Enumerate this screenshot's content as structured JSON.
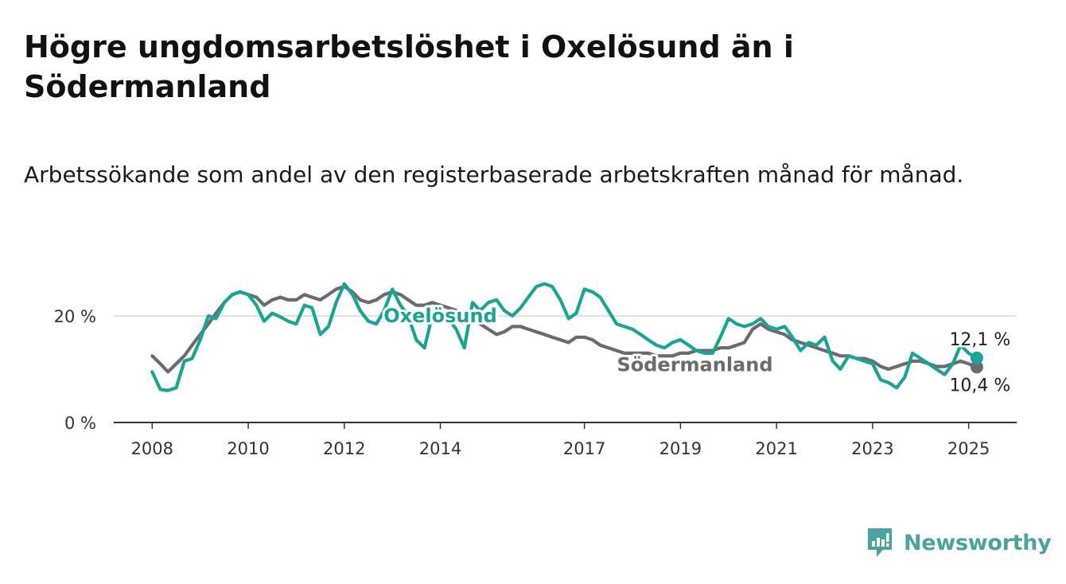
{
  "title": "Högre ungdomsarbetslöshet i Oxelösund än i Södermanland",
  "subtitle": "Arbetssökande som andel av den registerbaserade arbetskraften månad för månad.",
  "brand": {
    "name": "Newsworthy",
    "icon": "newsworthy-logo-icon",
    "color": "#4aa39e"
  },
  "chart_data": {
    "type": "line",
    "ylim": [
      0,
      30
    ],
    "y_ticks": [
      {
        "value": 0,
        "label": "0 %"
      },
      {
        "value": 20,
        "label": "20 %"
      }
    ],
    "x_ticks": [
      {
        "value": 2008,
        "label": "2008"
      },
      {
        "value": 2010,
        "label": "2010"
      },
      {
        "value": 2012,
        "label": "2012"
      },
      {
        "value": 2014,
        "label": "2014"
      },
      {
        "value": 2017,
        "label": "2017"
      },
      {
        "value": 2019,
        "label": "2019"
      },
      {
        "value": 2021,
        "label": "2021"
      },
      {
        "value": 2023,
        "label": "2023"
      },
      {
        "value": 2025,
        "label": "2025"
      }
    ],
    "xlim": [
      2007.2,
      2026.0
    ],
    "grid": "horizontal",
    "series": [
      {
        "name": "Oxelösund",
        "color": "#1aa396",
        "end_label": "12,1 %",
        "points": [
          [
            2008.0,
            9.5
          ],
          [
            2008.17,
            6.2
          ],
          [
            2008.33,
            6.0
          ],
          [
            2008.5,
            6.5
          ],
          [
            2008.67,
            11.5
          ],
          [
            2008.83,
            12.0
          ],
          [
            2009.0,
            15.5
          ],
          [
            2009.17,
            20.0
          ],
          [
            2009.33,
            19.5
          ],
          [
            2009.5,
            22.5
          ],
          [
            2009.67,
            24.0
          ],
          [
            2009.83,
            24.5
          ],
          [
            2010.0,
            24.0
          ],
          [
            2010.17,
            22.0
          ],
          [
            2010.33,
            19.0
          ],
          [
            2010.5,
            20.5
          ],
          [
            2010.67,
            19.8
          ],
          [
            2010.83,
            19.0
          ],
          [
            2011.0,
            18.5
          ],
          [
            2011.17,
            22.0
          ],
          [
            2011.33,
            21.5
          ],
          [
            2011.5,
            16.5
          ],
          [
            2011.67,
            18.0
          ],
          [
            2011.83,
            22.5
          ],
          [
            2012.0,
            26.0
          ],
          [
            2012.17,
            24.0
          ],
          [
            2012.33,
            21.0
          ],
          [
            2012.5,
            19.0
          ],
          [
            2012.67,
            18.5
          ],
          [
            2012.83,
            21.0
          ],
          [
            2013.0,
            25.0
          ],
          [
            2013.17,
            22.0
          ],
          [
            2013.33,
            20.0
          ],
          [
            2013.5,
            15.5
          ],
          [
            2013.67,
            14.0
          ],
          [
            2013.83,
            20.0
          ],
          [
            2014.0,
            21.0
          ],
          [
            2014.17,
            19.5
          ],
          [
            2014.33,
            17.5
          ],
          [
            2014.5,
            14.0
          ],
          [
            2014.67,
            22.5
          ],
          [
            2014.83,
            21.0
          ],
          [
            2015.0,
            22.5
          ],
          [
            2015.17,
            23.0
          ],
          [
            2015.33,
            21.0
          ],
          [
            2015.5,
            20.0
          ],
          [
            2015.67,
            21.5
          ],
          [
            2015.83,
            23.5
          ],
          [
            2016.0,
            25.5
          ],
          [
            2016.17,
            26.0
          ],
          [
            2016.33,
            25.5
          ],
          [
            2016.5,
            23.0
          ],
          [
            2016.67,
            19.5
          ],
          [
            2016.83,
            20.5
          ],
          [
            2017.0,
            25.0
          ],
          [
            2017.17,
            24.5
          ],
          [
            2017.33,
            23.5
          ],
          [
            2017.5,
            21.0
          ],
          [
            2017.67,
            18.5
          ],
          [
            2017.83,
            18.0
          ],
          [
            2018.0,
            17.5
          ],
          [
            2018.17,
            16.5
          ],
          [
            2018.33,
            15.5
          ],
          [
            2018.5,
            14.5
          ],
          [
            2018.67,
            14.0
          ],
          [
            2018.83,
            15.0
          ],
          [
            2019.0,
            15.5
          ],
          [
            2019.17,
            14.5
          ],
          [
            2019.33,
            13.5
          ],
          [
            2019.5,
            13.0
          ],
          [
            2019.67,
            13.0
          ],
          [
            2019.83,
            16.0
          ],
          [
            2020.0,
            19.5
          ],
          [
            2020.17,
            18.5
          ],
          [
            2020.33,
            18.0
          ],
          [
            2020.5,
            18.5
          ],
          [
            2020.67,
            19.5
          ],
          [
            2020.83,
            18.0
          ],
          [
            2021.0,
            17.5
          ],
          [
            2021.17,
            18.0
          ],
          [
            2021.33,
            16.0
          ],
          [
            2021.5,
            13.5
          ],
          [
            2021.67,
            15.0
          ],
          [
            2021.83,
            14.5
          ],
          [
            2022.0,
            16.0
          ],
          [
            2022.17,
            11.5
          ],
          [
            2022.33,
            10.0
          ],
          [
            2022.5,
            12.5
          ],
          [
            2022.67,
            12.0
          ],
          [
            2022.83,
            11.5
          ],
          [
            2023.0,
            11.0
          ],
          [
            2023.17,
            8.0
          ],
          [
            2023.33,
            7.5
          ],
          [
            2023.5,
            6.5
          ],
          [
            2023.67,
            8.5
          ],
          [
            2023.83,
            13.0
          ],
          [
            2024.0,
            12.0
          ],
          [
            2024.17,
            11.0
          ],
          [
            2024.33,
            10.0
          ],
          [
            2024.5,
            9.0
          ],
          [
            2024.67,
            11.0
          ],
          [
            2024.83,
            14.5
          ],
          [
            2025.0,
            13.0
          ],
          [
            2025.17,
            12.1
          ]
        ]
      },
      {
        "name": "Södermanland",
        "color": "#6b6a70",
        "end_label": "10,4 %",
        "points": [
          [
            2008.0,
            12.5
          ],
          [
            2008.17,
            11.0
          ],
          [
            2008.33,
            9.5
          ],
          [
            2008.5,
            11.0
          ],
          [
            2008.67,
            12.5
          ],
          [
            2008.83,
            14.5
          ],
          [
            2009.0,
            16.5
          ],
          [
            2009.17,
            18.5
          ],
          [
            2009.33,
            20.5
          ],
          [
            2009.5,
            22.5
          ],
          [
            2009.67,
            24.0
          ],
          [
            2009.83,
            24.5
          ],
          [
            2010.0,
            24.0
          ],
          [
            2010.17,
            23.5
          ],
          [
            2010.33,
            22.0
          ],
          [
            2010.5,
            23.0
          ],
          [
            2010.67,
            23.5
          ],
          [
            2010.83,
            23.0
          ],
          [
            2011.0,
            23.0
          ],
          [
            2011.17,
            24.0
          ],
          [
            2011.33,
            23.5
          ],
          [
            2011.5,
            23.0
          ],
          [
            2011.67,
            24.0
          ],
          [
            2011.83,
            25.0
          ],
          [
            2012.0,
            25.5
          ],
          [
            2012.17,
            24.5
          ],
          [
            2012.33,
            23.0
          ],
          [
            2012.5,
            22.5
          ],
          [
            2012.67,
            23.0
          ],
          [
            2012.83,
            24.0
          ],
          [
            2013.0,
            24.5
          ],
          [
            2013.17,
            24.0
          ],
          [
            2013.33,
            23.0
          ],
          [
            2013.5,
            22.0
          ],
          [
            2013.67,
            22.0
          ],
          [
            2013.83,
            22.5
          ],
          [
            2014.0,
            22.0
          ],
          [
            2014.17,
            21.5
          ],
          [
            2014.33,
            21.0
          ],
          [
            2014.5,
            20.5
          ],
          [
            2014.67,
            19.5
          ],
          [
            2014.83,
            18.5
          ],
          [
            2015.0,
            17.5
          ],
          [
            2015.17,
            16.5
          ],
          [
            2015.33,
            17.0
          ],
          [
            2015.5,
            18.0
          ],
          [
            2015.67,
            18.0
          ],
          [
            2015.83,
            17.5
          ],
          [
            2016.0,
            17.0
          ],
          [
            2016.17,
            16.5
          ],
          [
            2016.33,
            16.0
          ],
          [
            2016.5,
            15.5
          ],
          [
            2016.67,
            15.0
          ],
          [
            2016.83,
            16.0
          ],
          [
            2017.0,
            16.0
          ],
          [
            2017.17,
            15.5
          ],
          [
            2017.33,
            14.5
          ],
          [
            2017.5,
            14.0
          ],
          [
            2017.67,
            13.5
          ],
          [
            2017.83,
            13.0
          ],
          [
            2018.0,
            13.0
          ],
          [
            2018.17,
            13.0
          ],
          [
            2018.33,
            13.0
          ],
          [
            2018.5,
            12.5
          ],
          [
            2018.67,
            12.5
          ],
          [
            2018.83,
            12.5
          ],
          [
            2019.0,
            13.0
          ],
          [
            2019.17,
            13.0
          ],
          [
            2019.33,
            13.5
          ],
          [
            2019.5,
            13.5
          ],
          [
            2019.67,
            13.5
          ],
          [
            2019.83,
            14.0
          ],
          [
            2020.0,
            14.0
          ],
          [
            2020.17,
            14.5
          ],
          [
            2020.33,
            15.0
          ],
          [
            2020.5,
            17.5
          ],
          [
            2020.67,
            18.5
          ],
          [
            2020.83,
            17.5
          ],
          [
            2021.0,
            17.0
          ],
          [
            2021.17,
            16.5
          ],
          [
            2021.33,
            15.5
          ],
          [
            2021.5,
            15.0
          ],
          [
            2021.67,
            14.5
          ],
          [
            2021.83,
            14.0
          ],
          [
            2022.0,
            13.5
          ],
          [
            2022.17,
            13.0
          ],
          [
            2022.33,
            12.5
          ],
          [
            2022.5,
            12.5
          ],
          [
            2022.67,
            12.0
          ],
          [
            2022.83,
            12.0
          ],
          [
            2023.0,
            11.5
          ],
          [
            2023.17,
            10.5
          ],
          [
            2023.33,
            10.0
          ],
          [
            2023.5,
            10.5
          ],
          [
            2023.67,
            11.0
          ],
          [
            2023.83,
            11.5
          ],
          [
            2024.0,
            11.5
          ],
          [
            2024.17,
            11.0
          ],
          [
            2024.33,
            10.5
          ],
          [
            2024.5,
            10.5
          ],
          [
            2024.67,
            11.0
          ],
          [
            2024.83,
            11.5
          ],
          [
            2025.0,
            11.0
          ],
          [
            2025.17,
            10.4
          ]
        ]
      }
    ],
    "annotations": [
      {
        "text": "Oxelösund",
        "series": "Oxelösund",
        "x": 2014.0,
        "y": 20.0
      },
      {
        "text": "Södermanland",
        "series": "Södermanland",
        "x": 2019.3,
        "y": 10.8
      }
    ]
  }
}
